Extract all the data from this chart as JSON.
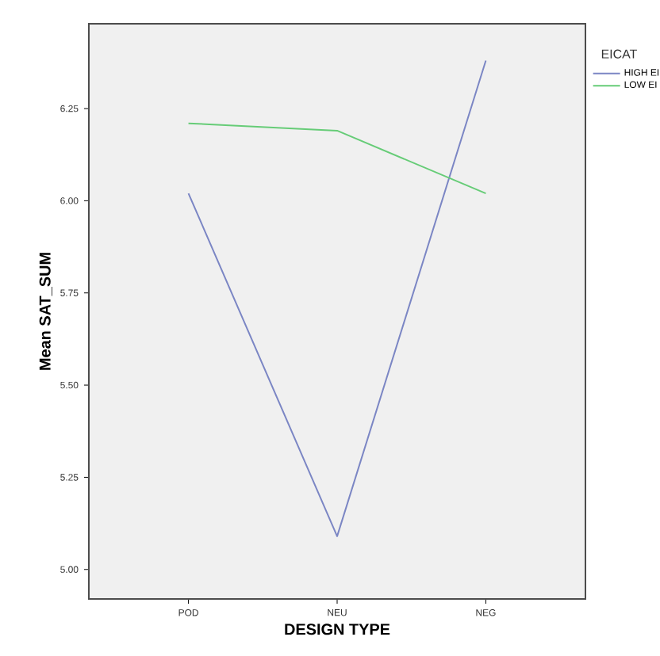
{
  "chart_data": {
    "type": "line",
    "xlabel": "DESIGN TYPE",
    "ylabel": "Mean SAT_SUM",
    "legend_title": "EICAT",
    "legend": "top right",
    "categories": [
      "POD",
      "NEU",
      "NEG"
    ],
    "series": [
      {
        "name": "HIGH EI",
        "color": "#7b86c4",
        "values": [
          6.02,
          5.09,
          6.38
        ]
      },
      {
        "name": "LOW EI",
        "color": "#66cc77",
        "values": [
          6.21,
          6.19,
          6.02
        ]
      }
    ],
    "ylim": [
      4.92,
      6.48
    ],
    "yticks": [
      {
        "value": 5,
        "label": "5.00"
      },
      {
        "value": 5.25,
        "label": "5.25"
      },
      {
        "value": 5.5,
        "label": "5.50"
      },
      {
        "value": 5.75,
        "label": "5.75"
      },
      {
        "value": 6,
        "label": "6.00"
      },
      {
        "value": 6.25,
        "label": "6.25"
      }
    ],
    "grid": false,
    "marker": "none",
    "line_style": "solid"
  }
}
